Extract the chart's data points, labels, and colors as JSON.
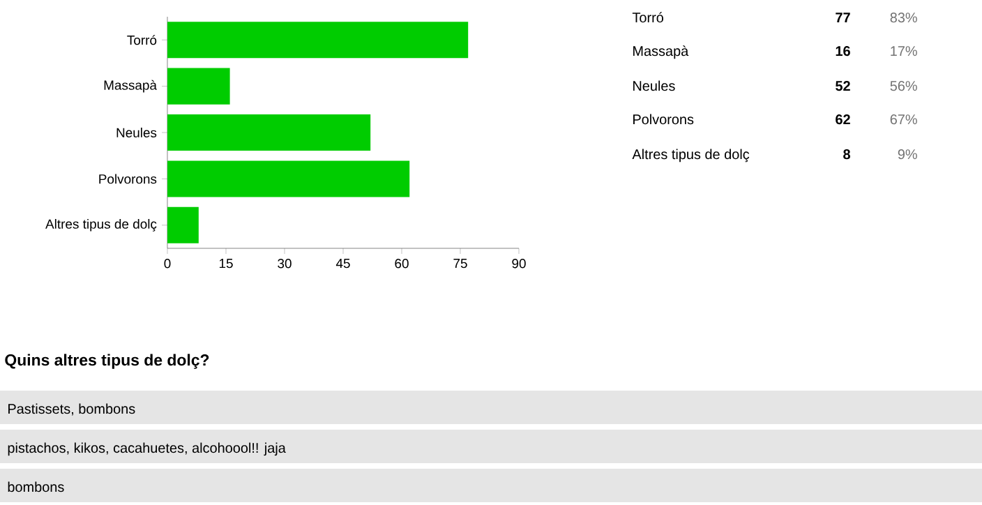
{
  "chart_data": {
    "type": "bar",
    "orientation": "horizontal",
    "categories": [
      "Torró",
      "Massapà",
      "Neules",
      "Polvorons",
      "Altres tipus de dolç"
    ],
    "values": [
      77,
      16,
      52,
      62,
      8
    ],
    "color": "#00cc00",
    "xlim": [
      0,
      90
    ],
    "xticks": [
      0,
      15,
      30,
      45,
      60,
      75,
      90
    ],
    "annotations": [
      "77",
      "16",
      "52",
      "62",
      "8",
      "83%",
      "17%",
      "56%",
      "67%",
      "9%",
      "Quins altres tipus de dolç?",
      "Pastissets, bombons",
      "pistachos, kikos, cacahuetes, alcohoool!! jaja",
      "bombons"
    ]
  }
}
